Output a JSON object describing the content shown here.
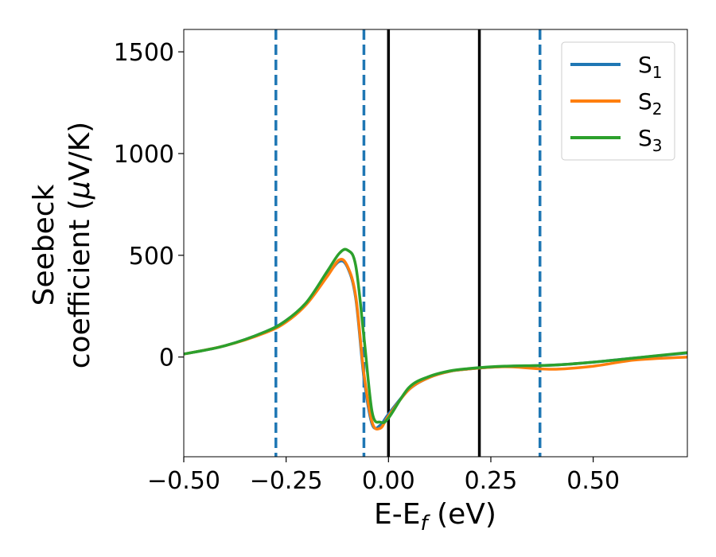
{
  "chart_data": {
    "type": "line",
    "xlabel": "E-E",
    "xlabel_sub": "f",
    "xlabel_unit": " (eV)",
    "ylabel_line1": "Seebeck",
    "ylabel_line2": "coefficient  (",
    "ylabel_mu": "μ",
    "ylabel_unit": "V/K)",
    "xlim": [
      -0.5,
      0.73
    ],
    "ylim": [
      -490,
      1610
    ],
    "xticks": [
      -0.5,
      -0.25,
      0.0,
      0.25,
      0.5
    ],
    "xtick_labels": [
      "−0.50",
      "−0.25",
      "0.00",
      "0.25",
      "0.50"
    ],
    "yticks": [
      0,
      500,
      1000,
      1500
    ],
    "ytick_labels": [
      "0",
      "500",
      "1000",
      "1500"
    ],
    "grid": false,
    "legend_position": "top-right",
    "vlines": [
      {
        "x": -0.275,
        "style": "dashed",
        "color": "#1f77b4"
      },
      {
        "x": -0.06,
        "style": "dashed",
        "color": "#1f77b4"
      },
      {
        "x": 0.0,
        "style": "solid",
        "color": "#000000"
      },
      {
        "x": 0.222,
        "style": "solid",
        "color": "#000000"
      },
      {
        "x": 0.37,
        "style": "dashed",
        "color": "#1f77b4"
      }
    ],
    "series": [
      {
        "name": "S",
        "sub": "1",
        "color": "#1f77b4",
        "x": [
          -0.5,
          -0.4,
          -0.3,
          -0.25,
          -0.2,
          -0.15,
          -0.12,
          -0.1,
          -0.08,
          -0.06,
          -0.04,
          -0.02,
          0.0,
          0.05,
          0.1,
          0.15,
          0.2,
          0.25,
          0.3,
          0.4,
          0.5,
          0.6,
          0.73
        ],
        "y": [
          15,
          55,
          125,
          180,
          265,
          400,
          470,
          440,
          290,
          -100,
          -330,
          -335,
          -280,
          -160,
          -100,
          -70,
          -58,
          -50,
          -45,
          -40,
          -25,
          -5,
          20
        ]
      },
      {
        "name": "S",
        "sub": "2",
        "color": "#ff7f0e",
        "x": [
          -0.5,
          -0.4,
          -0.3,
          -0.25,
          -0.2,
          -0.15,
          -0.12,
          -0.1,
          -0.08,
          -0.06,
          -0.04,
          -0.02,
          0.0,
          0.05,
          0.1,
          0.15,
          0.2,
          0.25,
          0.3,
          0.4,
          0.5,
          0.6,
          0.73
        ],
        "y": [
          15,
          55,
          120,
          172,
          260,
          395,
          478,
          445,
          300,
          -80,
          -320,
          -350,
          -290,
          -160,
          -100,
          -70,
          -58,
          -50,
          -48,
          -60,
          -45,
          -15,
          0
        ]
      },
      {
        "name": "S",
        "sub": "3",
        "color": "#2ca02c",
        "x": [
          -0.5,
          -0.4,
          -0.3,
          -0.25,
          -0.2,
          -0.15,
          -0.12,
          -0.1,
          -0.08,
          -0.06,
          -0.04,
          -0.02,
          0.0,
          0.05,
          0.1,
          0.15,
          0.2,
          0.25,
          0.3,
          0.4,
          0.5,
          0.6,
          0.73
        ],
        "y": [
          15,
          55,
          125,
          180,
          270,
          420,
          510,
          525,
          450,
          100,
          -270,
          -320,
          -300,
          -150,
          -95,
          -68,
          -56,
          -48,
          -44,
          -40,
          -25,
          -5,
          22
        ]
      }
    ]
  }
}
